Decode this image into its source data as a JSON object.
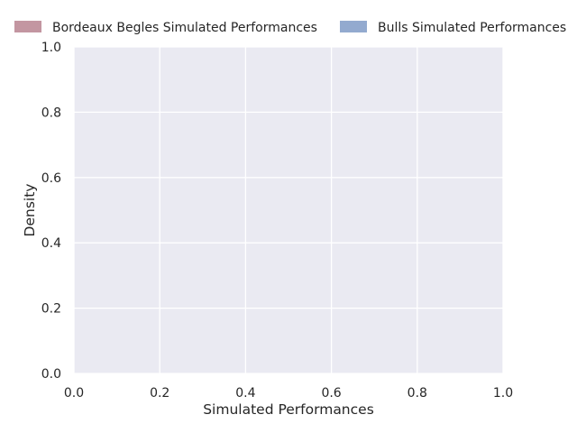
{
  "chart_data": {
    "type": "area",
    "title": "",
    "xlabel": "Simulated Performances",
    "ylabel": "Density",
    "xlim": [
      0.0,
      1.0
    ],
    "ylim": [
      0.0,
      1.0
    ],
    "xticks": [
      "0.0",
      "0.2",
      "0.4",
      "0.6",
      "0.8",
      "1.0"
    ],
    "yticks": [
      "0.0",
      "0.2",
      "0.4",
      "0.6",
      "0.8",
      "1.0"
    ],
    "grid": true,
    "legend_position": "top, outside plot, two columns",
    "series": [
      {
        "name": "Bordeaux Begles Simulated Performances",
        "color": "#c0909c",
        "x": [],
        "y": []
      },
      {
        "name": "Bulls Simulated Performances",
        "color": "#8da5cc",
        "x": [],
        "y": []
      }
    ],
    "colors": {
      "plot_background": "#eaeaf2",
      "grid": "#ffffff",
      "text": "#262626"
    }
  }
}
